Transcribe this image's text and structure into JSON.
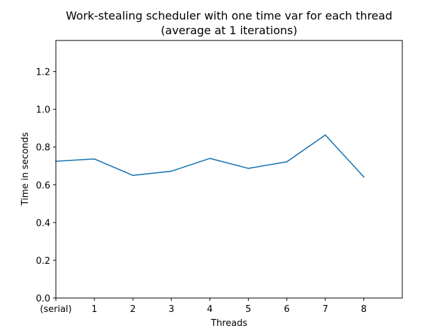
{
  "chart_data": {
    "type": "line",
    "title_lines": [
      "Work-stealing scheduler with one time var for each thread",
      "(average at 1 iterations)"
    ],
    "xlabel": "Threads",
    "ylabel": "Time in seconds",
    "x_tick_labels": [
      "(serial)",
      "1",
      "2",
      "3",
      "4",
      "5",
      "6",
      "7",
      "8"
    ],
    "x_range": [
      0,
      9
    ],
    "ylim": [
      0,
      1.365
    ],
    "y_ticks": [
      0.0,
      0.2,
      0.4,
      0.6,
      0.8,
      1.0,
      1.2
    ],
    "y_tick_labels": [
      "0.0",
      "0.2",
      "0.4",
      "0.6",
      "0.8",
      "1.0",
      "1.2"
    ],
    "grid": false,
    "legend": "none",
    "series": [
      {
        "color": "#1f77b4",
        "x": [
          0,
          1,
          2,
          3,
          4,
          5,
          6,
          7,
          8
        ],
        "values": [
          0.725,
          0.737,
          0.65,
          0.672,
          0.74,
          0.687,
          0.722,
          0.864,
          0.642
        ]
      }
    ]
  }
}
